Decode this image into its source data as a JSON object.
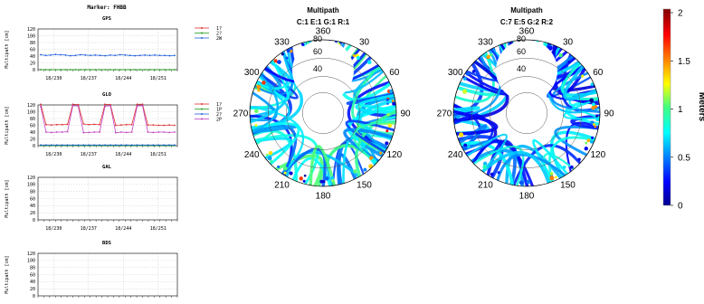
{
  "marker_title": "Marker: FHBB",
  "ylabel": "Multipath [cm]",
  "legend_label": "Meters",
  "colorbar_ticks": [
    0,
    0.5,
    1,
    1.5,
    2
  ],
  "colorbar_range": [
    0,
    2
  ],
  "chart_data": [
    {
      "type": "line",
      "title": "GPS",
      "ylabel": "Multipath [cm]",
      "ylim": [
        0,
        120
      ],
      "yticks": [
        0,
        20,
        40,
        60,
        80,
        100,
        120
      ],
      "xtick_labels": [
        "18/230",
        "18/237",
        "18/244",
        "18/251"
      ],
      "series": [
        {
          "name": "1?",
          "color": "#e03030",
          "values": []
        },
        {
          "name": "2?",
          "color": "#20a020",
          "values": [
            0,
            0,
            0,
            0,
            0,
            0,
            0,
            0,
            0,
            0,
            0,
            0,
            0,
            0,
            0,
            0,
            0,
            0,
            0,
            0,
            0,
            0,
            0,
            0,
            0,
            0,
            0,
            0
          ]
        },
        {
          "name": "2W",
          "color": "#2060e0",
          "values": [
            44,
            42,
            43,
            45,
            44,
            43,
            41,
            42,
            44,
            43,
            42,
            43,
            42,
            41,
            43,
            42,
            44,
            43,
            42,
            41,
            42,
            43,
            42,
            43,
            42,
            42,
            41,
            42
          ]
        }
      ]
    },
    {
      "type": "line",
      "title": "GLO",
      "ylabel": "Multipath [cm]",
      "ylim": [
        0,
        120
      ],
      "yticks": [
        0,
        20,
        40,
        60,
        80,
        100,
        120
      ],
      "xtick_labels": [
        "18/230",
        "18/237",
        "18/244",
        "18/251"
      ],
      "series": [
        {
          "name": "1?",
          "color": "#e03030",
          "values": [
            122,
            62,
            61,
            62,
            62,
            63,
            122,
            121,
            64,
            62,
            63,
            62,
            122,
            121,
            60,
            61,
            62,
            62,
            122,
            122,
            61,
            61,
            60,
            60,
            61,
            60
          ]
        },
        {
          "name": "1P",
          "color": "#20a020",
          "values": [
            0,
            0,
            0,
            0,
            0,
            0,
            0,
            0,
            0,
            0,
            0,
            0,
            0,
            0,
            0,
            0,
            0,
            0,
            0,
            0,
            0,
            0,
            0,
            0,
            0,
            0
          ]
        },
        {
          "name": "2?",
          "color": "#2060e0",
          "values": [
            2,
            2,
            2,
            2,
            2,
            2,
            2,
            2,
            2,
            2,
            2,
            2,
            2,
            2,
            2,
            2,
            2,
            2,
            2,
            2,
            2,
            2,
            2,
            2,
            2,
            2
          ]
        },
        {
          "name": "2P",
          "color": "#c040c0",
          "values": [
            115,
            40,
            39,
            40,
            40,
            41,
            118,
            117,
            38,
            39,
            40,
            40,
            116,
            118,
            38,
            40,
            39,
            40,
            117,
            118,
            40,
            39,
            40,
            40,
            39,
            40
          ]
        }
      ]
    },
    {
      "type": "line",
      "title": "GAL",
      "ylabel": "Multipath [cm]",
      "ylim": [
        0,
        120
      ],
      "yticks": [
        0,
        20,
        40,
        60,
        80,
        100,
        120
      ],
      "xtick_labels": [
        "18/230",
        "18/237",
        "18/244",
        "18/251"
      ],
      "series": []
    },
    {
      "type": "line",
      "title": "BDS",
      "ylabel": "Multipath [cm]",
      "ylim": [
        0,
        120
      ],
      "yticks": [
        0,
        20,
        40,
        60,
        80,
        100,
        120
      ],
      "xtick_labels": [],
      "series": []
    },
    {
      "type": "heatmap",
      "title": "Multipath",
      "subtitle": "C:1 E:1 G:1 R:1",
      "azimuth_labels": [
        "360",
        "30",
        "60",
        "90",
        "120",
        "150",
        "180",
        "210",
        "240",
        "270",
        "300",
        "330"
      ],
      "elevation_labels": [
        "40",
        "60",
        "80"
      ],
      "value_range": [
        0,
        2
      ]
    },
    {
      "type": "heatmap",
      "title": "Multipath",
      "subtitle": "C:7 E:5 G:2 R:2",
      "azimuth_labels": [
        "360",
        "30",
        "60",
        "90",
        "120",
        "150",
        "180",
        "210",
        "240",
        "270",
        "300",
        "330"
      ],
      "elevation_labels": [
        "40",
        "60",
        "80"
      ],
      "value_range": [
        0,
        2
      ]
    }
  ]
}
